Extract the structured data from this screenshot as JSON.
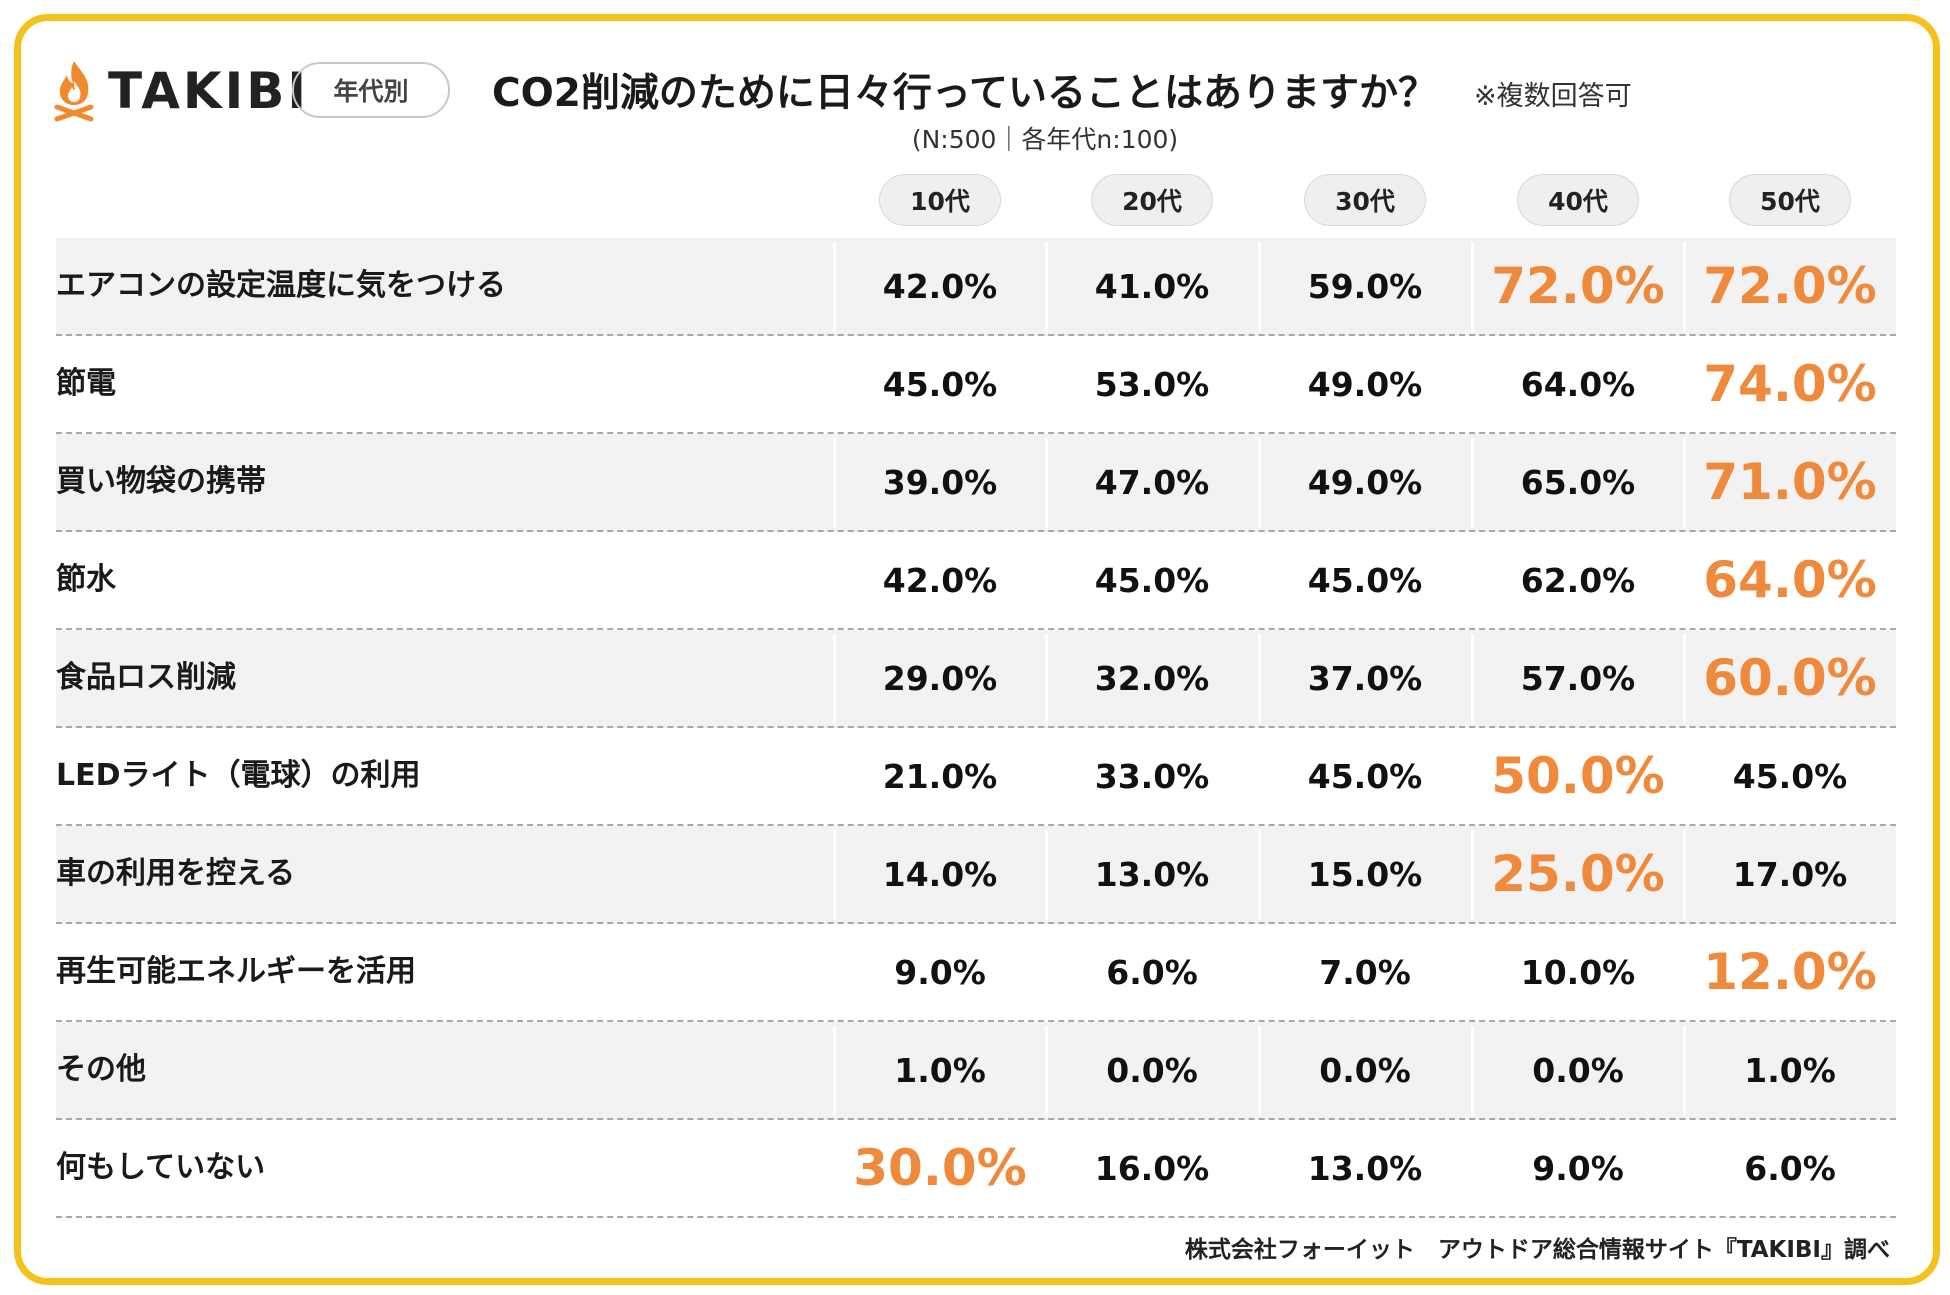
{
  "logo": {
    "text": "TAKIBI",
    "icon": "campfire-icon",
    "color": "#f08a2c"
  },
  "badge": "年代別",
  "header": {
    "title": "CO2削減のために日々行っていることはありますか？",
    "note": "※複数回答可",
    "subtitle": "(N:500｜各年代n:100)"
  },
  "colors": {
    "frame": "#f5c21b",
    "highlight": "#ef8a3c",
    "row_shade": "#f2f2f2"
  },
  "chart_data": {
    "type": "table",
    "title": "CO2削減のために日々行っていることはありますか？",
    "columns": [
      "10代",
      "20代",
      "30代",
      "40代",
      "50代"
    ],
    "rows": [
      {
        "label": "エアコンの設定温度に気をつける",
        "values": [
          "42.0%",
          "41.0%",
          "59.0%",
          "72.0%",
          "72.0%"
        ],
        "highlight": [
          false,
          false,
          false,
          true,
          true
        ]
      },
      {
        "label": "節電",
        "values": [
          "45.0%",
          "53.0%",
          "49.0%",
          "64.0%",
          "74.0%"
        ],
        "highlight": [
          false,
          false,
          false,
          false,
          true
        ]
      },
      {
        "label": "買い物袋の携帯",
        "values": [
          "39.0%",
          "47.0%",
          "49.0%",
          "65.0%",
          "71.0%"
        ],
        "highlight": [
          false,
          false,
          false,
          false,
          true
        ]
      },
      {
        "label": "節水",
        "values": [
          "42.0%",
          "45.0%",
          "45.0%",
          "62.0%",
          "64.0%"
        ],
        "highlight": [
          false,
          false,
          false,
          false,
          true
        ]
      },
      {
        "label": "食品ロス削減",
        "values": [
          "29.0%",
          "32.0%",
          "37.0%",
          "57.0%",
          "60.0%"
        ],
        "highlight": [
          false,
          false,
          false,
          false,
          true
        ]
      },
      {
        "label": "LEDライト（電球）の利用",
        "values": [
          "21.0%",
          "33.0%",
          "45.0%",
          "50.0%",
          "45.0%"
        ],
        "highlight": [
          false,
          false,
          false,
          true,
          false
        ]
      },
      {
        "label": "車の利用を控える",
        "values": [
          "14.0%",
          "13.0%",
          "15.0%",
          "25.0%",
          "17.0%"
        ],
        "highlight": [
          false,
          false,
          false,
          true,
          false
        ]
      },
      {
        "label": "再生可能エネルギーを活用",
        "values": [
          "9.0%",
          "6.0%",
          "7.0%",
          "10.0%",
          "12.0%"
        ],
        "highlight": [
          false,
          false,
          false,
          false,
          true
        ]
      },
      {
        "label": "その他",
        "values": [
          "1.0%",
          "0.0%",
          "0.0%",
          "0.0%",
          "1.0%"
        ],
        "highlight": [
          false,
          false,
          false,
          false,
          false
        ]
      },
      {
        "label": "何もしていない",
        "values": [
          "30.0%",
          "16.0%",
          "13.0%",
          "9.0%",
          "6.0%"
        ],
        "highlight": [
          true,
          false,
          false,
          false,
          false
        ]
      }
    ]
  },
  "footer": "株式会社フォーイット　アウトドア総合情報サイト『TAKIBI』調べ"
}
